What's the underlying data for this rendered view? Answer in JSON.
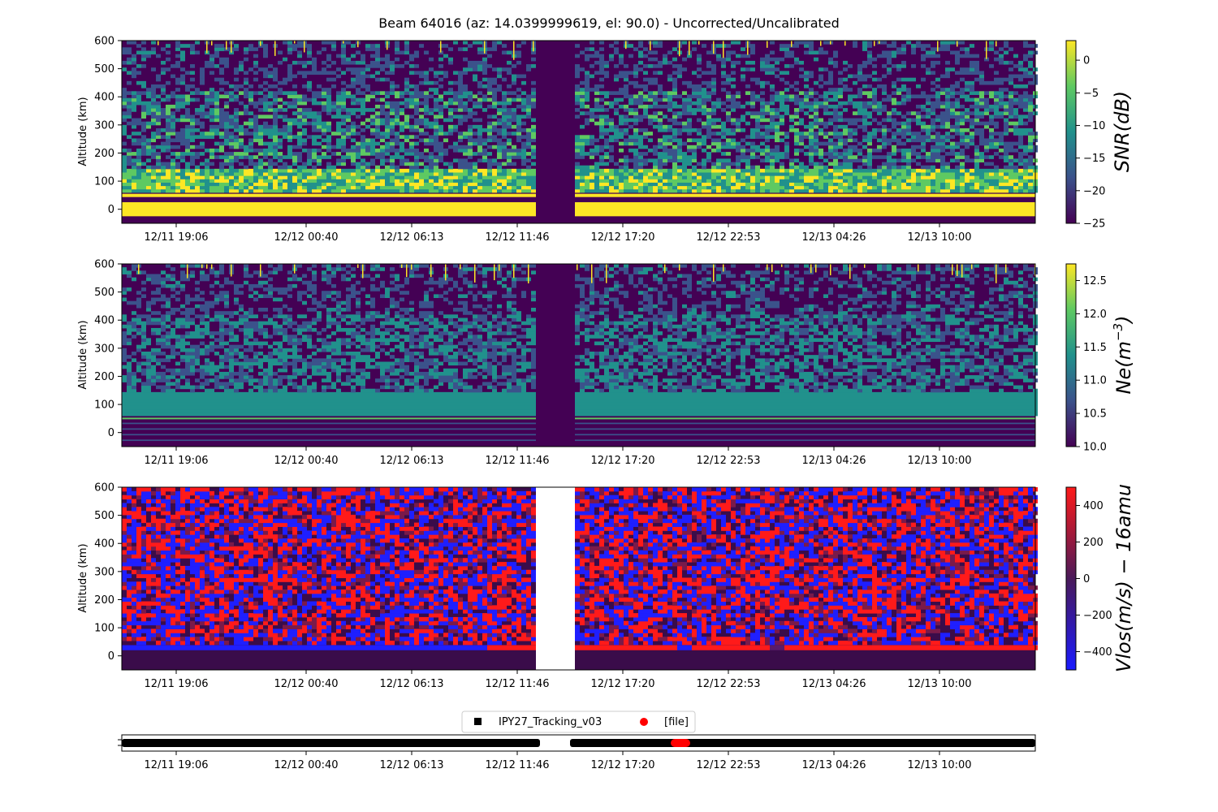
{
  "title": "Beam 64016 (az: 14.0399999619, el: 90.0) - Uncorrected/Uncalibrated",
  "x_ticks": [
    "12/11 19:06",
    "12/12 00:40",
    "12/12 06:13",
    "12/12 11:46",
    "12/12 17:20",
    "12/12 22:53",
    "12/13 04:26",
    "12/13 10:00"
  ],
  "chart_data": [
    {
      "type": "heatmap",
      "panel": "snr",
      "ylabel": "Altitude (km)",
      "y_ticks": [
        0,
        100,
        200,
        300,
        400,
        500,
        600
      ],
      "ylim": [
        -50,
        600
      ],
      "colorbar": {
        "label": "SNR(dB)",
        "colormap": "viridis",
        "range": [
          -25,
          3
        ],
        "ticks": [
          "0",
          "−5",
          "−10",
          "−15",
          "−20",
          "−25"
        ],
        "tick_values": [
          0,
          -5,
          -10,
          -15,
          -20,
          -25
        ]
      }
    },
    {
      "type": "heatmap",
      "panel": "ne",
      "ylabel": "Altitude (km)",
      "y_ticks": [
        0,
        100,
        200,
        300,
        400,
        500,
        600
      ],
      "ylim": [
        -50,
        600
      ],
      "colorbar": {
        "label": "Ne(m",
        "label_sup": "−3",
        "label_close": ")",
        "colormap": "viridis",
        "range": [
          10.0,
          12.75
        ],
        "ticks": [
          "12.5",
          "12.0",
          "11.5",
          "11.0",
          "10.5",
          "10.0"
        ],
        "tick_values": [
          12.5,
          12.0,
          11.5,
          11.0,
          10.5,
          10.0
        ]
      }
    },
    {
      "type": "heatmap",
      "panel": "vlos",
      "ylabel": "Altitude (km)",
      "y_ticks": [
        0,
        100,
        200,
        300,
        400,
        500,
        600
      ],
      "ylim": [
        -50,
        600
      ],
      "colorbar": {
        "label": "Vlos(m/s) − 16amu",
        "colormap": "blue-red",
        "range": [
          -500,
          500
        ],
        "ticks": [
          "400",
          "200",
          "0",
          "−200",
          "−400"
        ],
        "tick_values": [
          400,
          200,
          0,
          -200,
          -400
        ]
      }
    },
    {
      "type": "timeline",
      "panel": "file-coverage",
      "legend_placement": "top-center",
      "series": [
        {
          "name": "IPY27_Tracking_v03",
          "color": "#000000",
          "marker": "square"
        },
        {
          "name": "[file]",
          "color": "#ff0000",
          "marker": "circle"
        }
      ]
    }
  ],
  "colors": {
    "viridis": [
      "#440154",
      "#3b528b",
      "#21918c",
      "#5ec962",
      "#fde725"
    ],
    "blue": "#1f1fff",
    "red": "#ff1a1a",
    "dark": "#3a0c4a",
    "bg": "#ffffff"
  }
}
